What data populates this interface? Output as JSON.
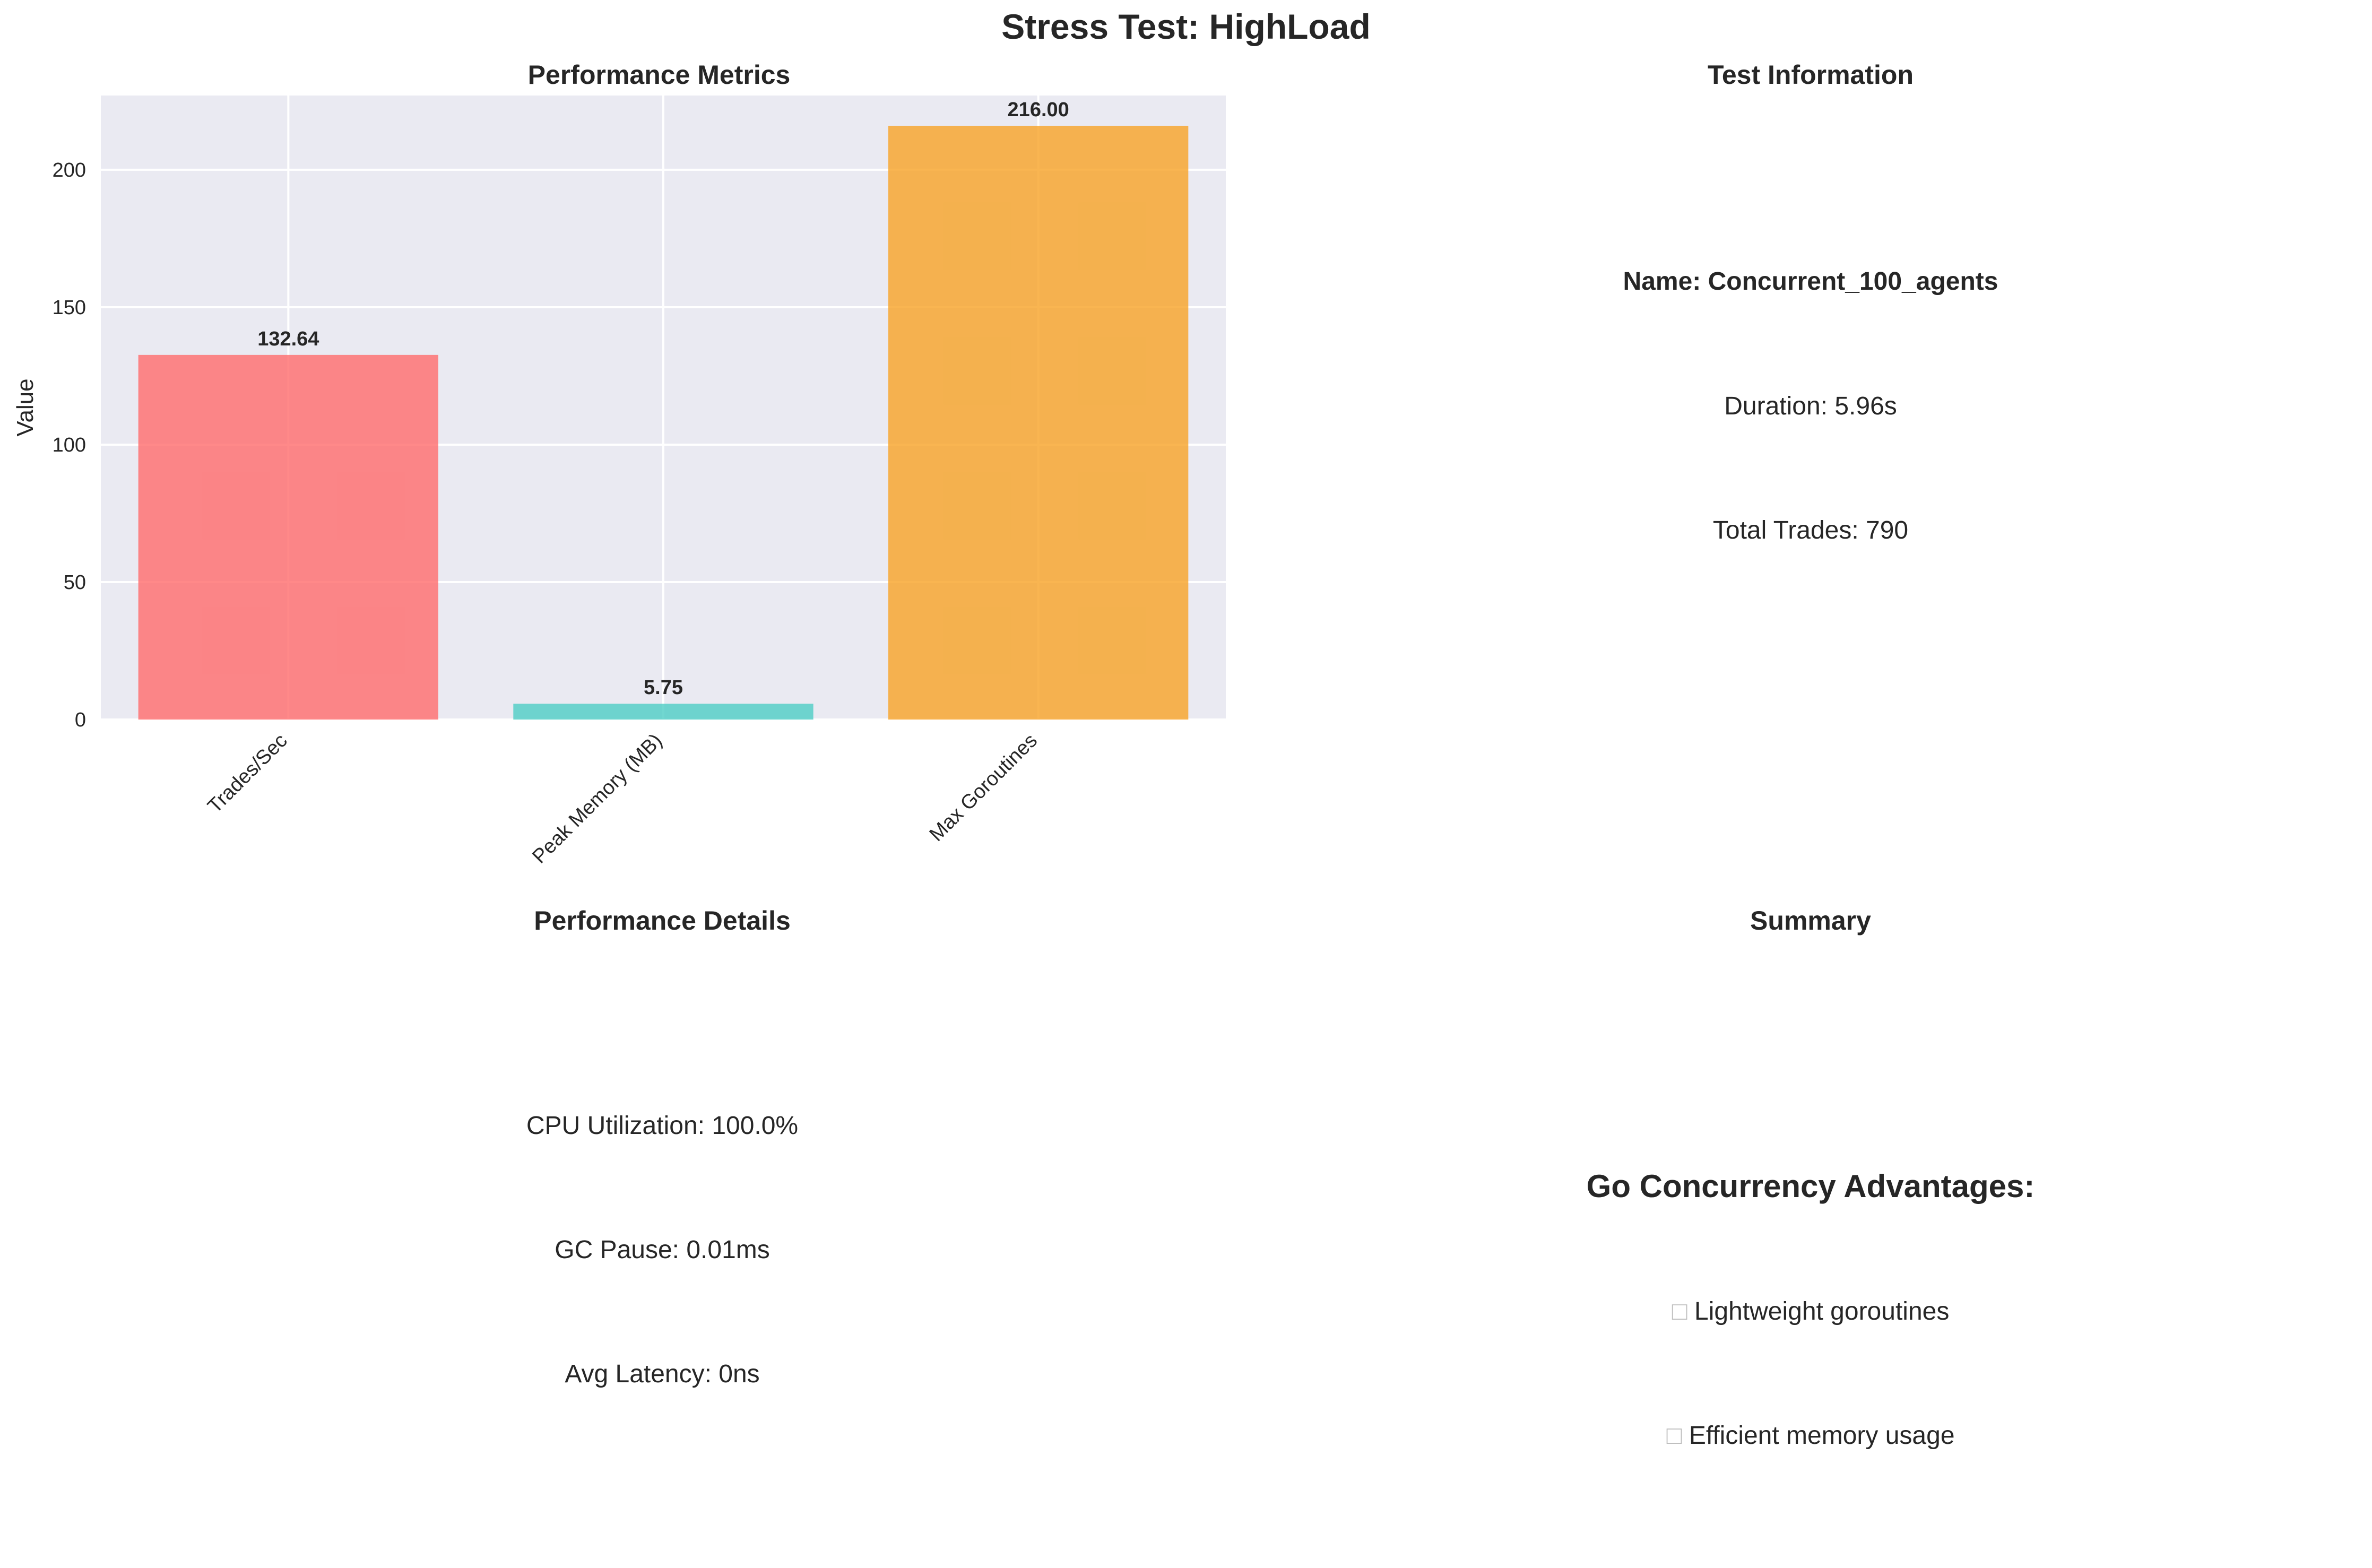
{
  "suptitle": "Stress Test: HighLoad",
  "panels": {
    "metrics": {
      "title": "Performance Metrics"
    },
    "info": {
      "title": "Test Information",
      "name": "Name: Concurrent_100_agents",
      "duration": "Duration: 5.96s",
      "trades": "Total Trades: 790"
    },
    "details": {
      "title": "Performance Details",
      "cpu": "CPU Utilization: 100.0%",
      "gc": "GC Pause: 0.01ms",
      "latency": "Avg Latency: 0ns"
    },
    "summary": {
      "title": "Summary",
      "heading": "Go Concurrency Advantages:",
      "bullet_glyph": "□",
      "items": [
        "Lightweight goroutines",
        "Efficient memory usage"
      ]
    }
  },
  "chart_data": {
    "type": "bar",
    "title": "Performance Metrics",
    "xlabel": "",
    "ylabel": "Value",
    "categories": [
      "Trades/Sec",
      "Peak Memory (MB)",
      "Max Goroutines"
    ],
    "values": [
      132.64,
      5.75,
      216.0
    ],
    "value_labels": [
      "132.64",
      "5.75",
      "216.00"
    ],
    "colors": [
      "#FF6B6B",
      "#4ECDC4",
      "#F7A325"
    ],
    "yticks": [
      0,
      50,
      100,
      150,
      200
    ],
    "ylim": [
      0,
      227
    ],
    "grid": true,
    "background": "#EAEAF2"
  }
}
